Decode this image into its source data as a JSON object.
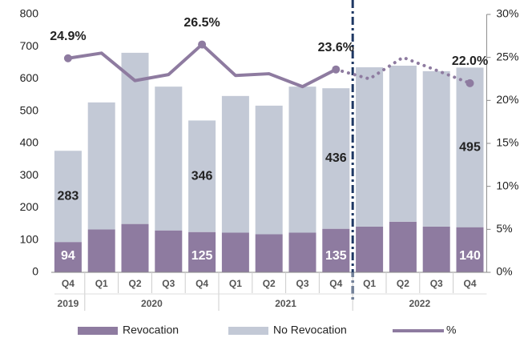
{
  "chart_data": {
    "type": "stacked_bar_line",
    "groups": [
      {
        "name": "2019",
        "categories": [
          "Q4"
        ]
      },
      {
        "name": "2020",
        "categories": [
          "Q1",
          "Q2",
          "Q3",
          "Q4"
        ]
      },
      {
        "name": "2021",
        "categories": [
          "Q1",
          "Q2",
          "Q3",
          "Q4"
        ]
      },
      {
        "name": "2022",
        "categories": [
          "Q1",
          "Q2",
          "Q3",
          "Q4"
        ]
      }
    ],
    "series": [
      {
        "name": "Revocation",
        "color": "#8e7ba0",
        "values": [
          94,
          133,
          150,
          130,
          125,
          123,
          118,
          123,
          135,
          142,
          157,
          142,
          140
        ],
        "value_labels": [
          "94",
          null,
          null,
          null,
          "125",
          null,
          null,
          null,
          "135",
          null,
          null,
          null,
          "140"
        ]
      },
      {
        "name": "No Revocation",
        "color": "#c3c9d6",
        "values": [
          283,
          394,
          531,
          446,
          346,
          424,
          399,
          453,
          436,
          494,
          484,
          482,
          495
        ],
        "value_labels": [
          "283",
          null,
          null,
          null,
          "346",
          null,
          null,
          null,
          "436",
          null,
          null,
          null,
          "495"
        ]
      },
      {
        "name": "%",
        "color": "#8e7ba0",
        "axis": "y2",
        "values": [
          24.9,
          25.5,
          22.3,
          23.0,
          26.5,
          22.9,
          23.1,
          21.6,
          23.6,
          22.5,
          25.0,
          23.5,
          22.0
        ],
        "value_labels": [
          "24.9%",
          null,
          null,
          null,
          "26.5%",
          null,
          null,
          null,
          "23.6%",
          null,
          null,
          null,
          "22.0%"
        ]
      }
    ],
    "ylim": [
      0,
      800
    ],
    "yticks": [
      0,
      100,
      200,
      300,
      400,
      500,
      600,
      700,
      800
    ],
    "y2lim": [
      0,
      30
    ],
    "y2ticks": [
      {
        "value": 0,
        "label": "0%"
      },
      {
        "value": 5,
        "label": "5%"
      },
      {
        "value": 10,
        "label": "10%"
      },
      {
        "value": 15,
        "label": "15%"
      },
      {
        "value": 20,
        "label": "20%"
      },
      {
        "value": 25,
        "label": "25%"
      },
      {
        "value": 30,
        "label": "30%"
      }
    ]
  }
}
